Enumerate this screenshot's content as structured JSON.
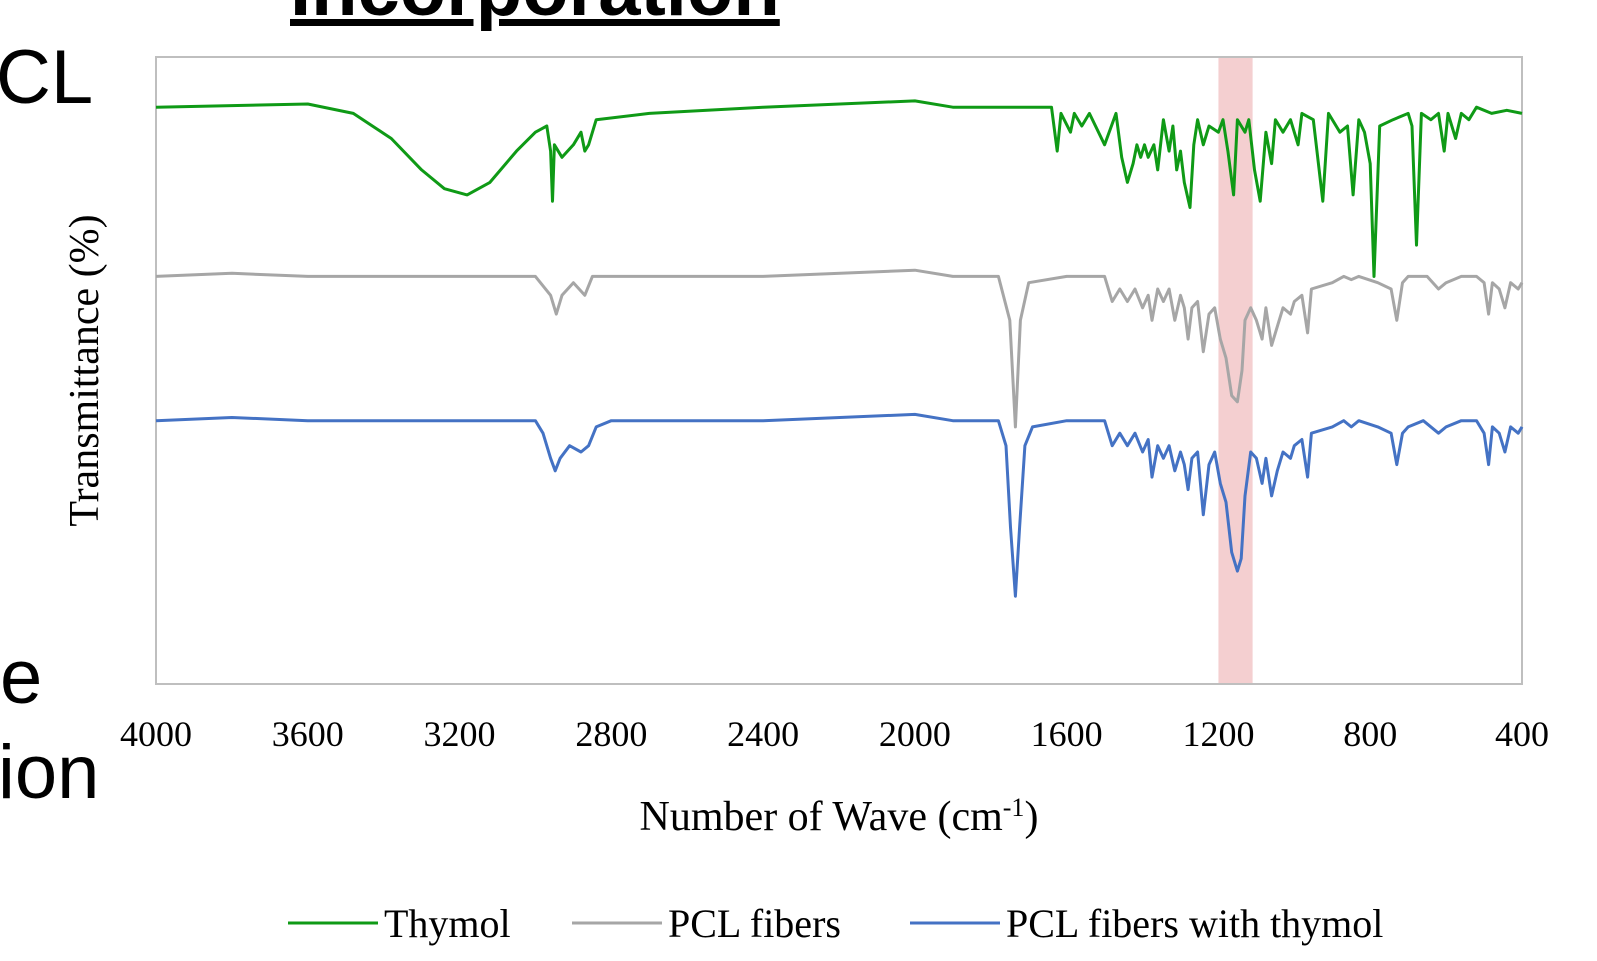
{
  "slide_fragments": {
    "heading": "Incorporation",
    "left_top": "CL",
    "left_bottom_1": "e",
    "left_bottom_2": "ion"
  },
  "chart_data": {
    "type": "line",
    "xlabel": "Number of Wave  (cm",
    "xlabel_sup": "-1",
    "xlabel_close": ")",
    "ylabel": "Transmittance (%)",
    "xlim": [
      4000,
      400
    ],
    "x_reversed": true,
    "ylim": [
      0,
      100
    ],
    "y_ticks_shown": false,
    "x_ticks": [
      "4000",
      "3600",
      "3200",
      "2800",
      "2400",
      "2000",
      "1600",
      "1200",
      "800",
      "400"
    ],
    "x_tick_values": [
      4000,
      3600,
      3200,
      2800,
      2400,
      2000,
      1600,
      1200,
      800,
      400
    ],
    "grid": false,
    "legend_position": "bottom",
    "highlight_band": {
      "x_from": 1200,
      "x_to": 1110,
      "color": "#f4cfd0"
    },
    "series": [
      {
        "name": "Thymol",
        "color": "#0f9a16",
        "points": [
          [
            4000,
            92
          ],
          [
            3600,
            92.5
          ],
          [
            3480,
            91
          ],
          [
            3380,
            87
          ],
          [
            3300,
            82
          ],
          [
            3240,
            79
          ],
          [
            3180,
            78
          ],
          [
            3120,
            80
          ],
          [
            3050,
            85
          ],
          [
            3000,
            88
          ],
          [
            2970,
            89
          ],
          [
            2960,
            85
          ],
          [
            2955,
            77
          ],
          [
            2950,
            86
          ],
          [
            2930,
            84
          ],
          [
            2900,
            86
          ],
          [
            2880,
            88
          ],
          [
            2870,
            85
          ],
          [
            2860,
            86
          ],
          [
            2840,
            90
          ],
          [
            2700,
            91
          ],
          [
            2400,
            92
          ],
          [
            2000,
            93
          ],
          [
            1900,
            92
          ],
          [
            1640,
            92
          ],
          [
            1625,
            85
          ],
          [
            1615,
            91
          ],
          [
            1590,
            88
          ],
          [
            1580,
            91
          ],
          [
            1560,
            89
          ],
          [
            1540,
            91
          ],
          [
            1500,
            86
          ],
          [
            1470,
            91
          ],
          [
            1455,
            84
          ],
          [
            1440,
            80
          ],
          [
            1425,
            83
          ],
          [
            1415,
            86
          ],
          [
            1405,
            84
          ],
          [
            1395,
            86
          ],
          [
            1385,
            84
          ],
          [
            1370,
            86
          ],
          [
            1360,
            82
          ],
          [
            1345,
            90
          ],
          [
            1330,
            85
          ],
          [
            1320,
            89
          ],
          [
            1310,
            82
          ],
          [
            1300,
            85
          ],
          [
            1290,
            80
          ],
          [
            1275,
            76
          ],
          [
            1265,
            86
          ],
          [
            1255,
            90
          ],
          [
            1240,
            86
          ],
          [
            1225,
            89
          ],
          [
            1200,
            88
          ],
          [
            1188,
            90
          ],
          [
            1175,
            85
          ],
          [
            1160,
            78
          ],
          [
            1150,
            90
          ],
          [
            1130,
            88
          ],
          [
            1120,
            90
          ],
          [
            1105,
            82
          ],
          [
            1090,
            77
          ],
          [
            1075,
            88
          ],
          [
            1060,
            83
          ],
          [
            1050,
            90
          ],
          [
            1030,
            88
          ],
          [
            1010,
            90
          ],
          [
            990,
            86
          ],
          [
            980,
            91
          ],
          [
            950,
            90
          ],
          [
            925,
            77
          ],
          [
            910,
            91
          ],
          [
            880,
            88
          ],
          [
            860,
            89
          ],
          [
            845,
            78
          ],
          [
            830,
            90
          ],
          [
            815,
            88
          ],
          [
            800,
            83
          ],
          [
            790,
            65
          ],
          [
            775,
            89
          ],
          [
            740,
            90
          ],
          [
            700,
            91
          ],
          [
            690,
            89
          ],
          [
            678,
            70
          ],
          [
            665,
            91
          ],
          [
            640,
            90
          ],
          [
            620,
            91
          ],
          [
            605,
            85
          ],
          [
            595,
            91
          ],
          [
            575,
            87
          ],
          [
            560,
            91
          ],
          [
            540,
            90
          ],
          [
            520,
            92
          ],
          [
            480,
            91
          ],
          [
            440,
            91.5
          ],
          [
            400,
            91
          ]
        ]
      },
      {
        "name": "PCL fibers",
        "color": "#a6a6a6",
        "points": [
          [
            4000,
            65
          ],
          [
            3800,
            65.5
          ],
          [
            3600,
            65
          ],
          [
            3200,
            65
          ],
          [
            3000,
            65
          ],
          [
            2960,
            62
          ],
          [
            2945,
            59
          ],
          [
            2930,
            62
          ],
          [
            2900,
            64
          ],
          [
            2870,
            62
          ],
          [
            2850,
            65
          ],
          [
            2800,
            65
          ],
          [
            2400,
            65
          ],
          [
            2000,
            66
          ],
          [
            1900,
            65
          ],
          [
            1780,
            65
          ],
          [
            1750,
            58
          ],
          [
            1735,
            41
          ],
          [
            1722,
            58
          ],
          [
            1700,
            64
          ],
          [
            1600,
            65
          ],
          [
            1500,
            65
          ],
          [
            1480,
            61
          ],
          [
            1460,
            63
          ],
          [
            1440,
            61
          ],
          [
            1420,
            63
          ],
          [
            1400,
            60
          ],
          [
            1385,
            62
          ],
          [
            1375,
            58
          ],
          [
            1360,
            63
          ],
          [
            1345,
            61
          ],
          [
            1330,
            63
          ],
          [
            1315,
            58
          ],
          [
            1300,
            62
          ],
          [
            1290,
            60
          ],
          [
            1280,
            55
          ],
          [
            1270,
            60
          ],
          [
            1255,
            61
          ],
          [
            1240,
            53
          ],
          [
            1225,
            59
          ],
          [
            1210,
            60
          ],
          [
            1195,
            55
          ],
          [
            1180,
            52
          ],
          [
            1165,
            46
          ],
          [
            1150,
            45
          ],
          [
            1138,
            50
          ],
          [
            1130,
            58
          ],
          [
            1115,
            60
          ],
          [
            1100,
            58
          ],
          [
            1085,
            55
          ],
          [
            1075,
            60
          ],
          [
            1060,
            54
          ],
          [
            1045,
            57
          ],
          [
            1030,
            60
          ],
          [
            1010,
            59
          ],
          [
            1000,
            61
          ],
          [
            980,
            62
          ],
          [
            965,
            56
          ],
          [
            955,
            63
          ],
          [
            900,
            64
          ],
          [
            870,
            65
          ],
          [
            850,
            64.5
          ],
          [
            830,
            65
          ],
          [
            780,
            64
          ],
          [
            745,
            63
          ],
          [
            730,
            58
          ],
          [
            715,
            64
          ],
          [
            700,
            65
          ],
          [
            650,
            65
          ],
          [
            620,
            63
          ],
          [
            600,
            64
          ],
          [
            560,
            65
          ],
          [
            520,
            65
          ],
          [
            500,
            64
          ],
          [
            488,
            59
          ],
          [
            478,
            64
          ],
          [
            460,
            63
          ],
          [
            445,
            60
          ],
          [
            430,
            64
          ],
          [
            410,
            63
          ],
          [
            400,
            64
          ]
        ]
      },
      {
        "name": "PCL fibers with thymol",
        "color": "#4472c4",
        "points": [
          [
            4000,
            42
          ],
          [
            3800,
            42.5
          ],
          [
            3600,
            42
          ],
          [
            3200,
            42
          ],
          [
            3000,
            42
          ],
          [
            2980,
            40
          ],
          [
            2960,
            36
          ],
          [
            2948,
            34
          ],
          [
            2935,
            36
          ],
          [
            2910,
            38
          ],
          [
            2880,
            37
          ],
          [
            2860,
            38
          ],
          [
            2840,
            41
          ],
          [
            2800,
            42
          ],
          [
            2400,
            42
          ],
          [
            2000,
            43
          ],
          [
            1900,
            42
          ],
          [
            1780,
            42
          ],
          [
            1760,
            38
          ],
          [
            1748,
            25
          ],
          [
            1735,
            14
          ],
          [
            1724,
            25
          ],
          [
            1710,
            38
          ],
          [
            1690,
            41
          ],
          [
            1600,
            42
          ],
          [
            1500,
            42
          ],
          [
            1480,
            38
          ],
          [
            1460,
            40
          ],
          [
            1440,
            38
          ],
          [
            1420,
            40
          ],
          [
            1400,
            37
          ],
          [
            1385,
            39
          ],
          [
            1375,
            33
          ],
          [
            1360,
            38
          ],
          [
            1345,
            36
          ],
          [
            1330,
            38
          ],
          [
            1315,
            34
          ],
          [
            1300,
            37
          ],
          [
            1290,
            35
          ],
          [
            1280,
            31
          ],
          [
            1270,
            36
          ],
          [
            1255,
            37
          ],
          [
            1240,
            27
          ],
          [
            1225,
            35
          ],
          [
            1210,
            37
          ],
          [
            1195,
            32
          ],
          [
            1180,
            29
          ],
          [
            1165,
            21
          ],
          [
            1150,
            18
          ],
          [
            1140,
            20
          ],
          [
            1130,
            30
          ],
          [
            1115,
            37
          ],
          [
            1100,
            36
          ],
          [
            1085,
            32
          ],
          [
            1075,
            36
          ],
          [
            1060,
            30
          ],
          [
            1045,
            34
          ],
          [
            1030,
            37
          ],
          [
            1010,
            36
          ],
          [
            1000,
            38
          ],
          [
            980,
            39
          ],
          [
            965,
            33
          ],
          [
            955,
            40
          ],
          [
            900,
            41
          ],
          [
            870,
            42
          ],
          [
            850,
            41
          ],
          [
            830,
            42
          ],
          [
            780,
            41
          ],
          [
            745,
            40
          ],
          [
            730,
            35
          ],
          [
            715,
            40
          ],
          [
            700,
            41
          ],
          [
            660,
            42
          ],
          [
            620,
            40
          ],
          [
            600,
            41
          ],
          [
            560,
            42
          ],
          [
            520,
            42
          ],
          [
            500,
            40
          ],
          [
            488,
            35
          ],
          [
            478,
            41
          ],
          [
            460,
            40
          ],
          [
            445,
            37
          ],
          [
            430,
            41
          ],
          [
            410,
            40
          ],
          [
            400,
            41
          ]
        ]
      }
    ]
  }
}
